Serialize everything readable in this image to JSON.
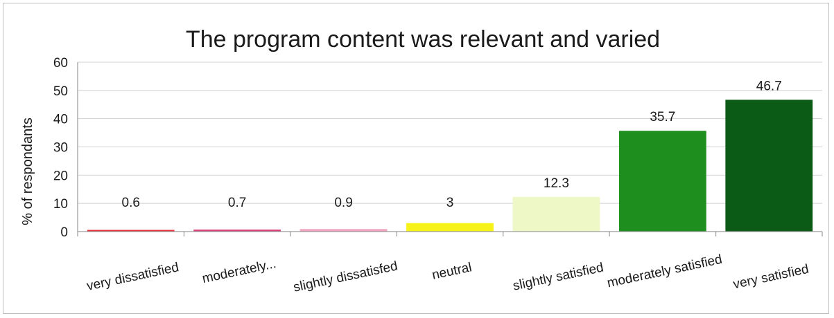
{
  "chart_data": {
    "type": "bar",
    "title": "The program content was relevant and varied",
    "ylabel": "% of respondants",
    "xlabel": "",
    "ylim": [
      0,
      60
    ],
    "yticks": [
      0,
      10,
      20,
      30,
      40,
      50,
      60
    ],
    "grid": true,
    "categories": [
      "very dissatisfied",
      "moderately...",
      "slightly dissatisfed",
      "neutral",
      "slightly satisfied",
      "moderately satisfied",
      "very satisfied"
    ],
    "values": [
      0.6,
      0.7,
      0.9,
      3,
      12.3,
      35.7,
      46.7
    ],
    "data_labels": [
      "0.6",
      "0.7",
      "0.9",
      "3",
      "12.3",
      "35.7",
      "46.7"
    ],
    "colors": [
      "#e8313a",
      "#d9407a",
      "#f2a3c0",
      "#f6f21a",
      "#eef8c6",
      "#1e8e1e",
      "#0b5a16"
    ]
  }
}
